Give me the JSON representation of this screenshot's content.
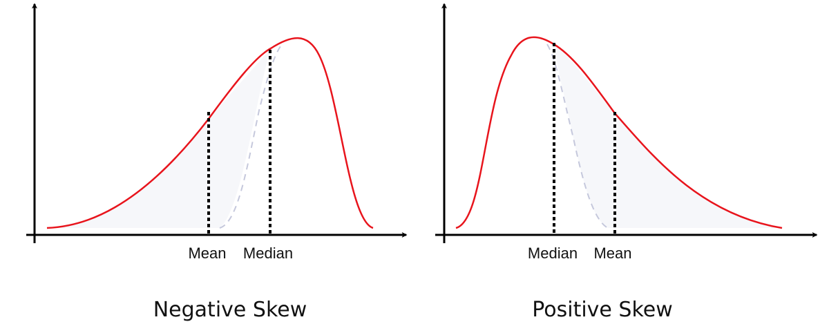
{
  "colors": {
    "curve": "#e8141c",
    "reference_curve": "#c5c8dc",
    "shade": "#f6f7fa",
    "axis": "#000000",
    "marker": "#000000"
  },
  "panels": [
    {
      "id": "negative",
      "title": "Negative Skew",
      "labels": {
        "first": "Mean",
        "second": "Median"
      }
    },
    {
      "id": "positive",
      "title": "Positive Skew",
      "labels": {
        "first": "Median",
        "second": "Mean"
      }
    }
  ]
}
